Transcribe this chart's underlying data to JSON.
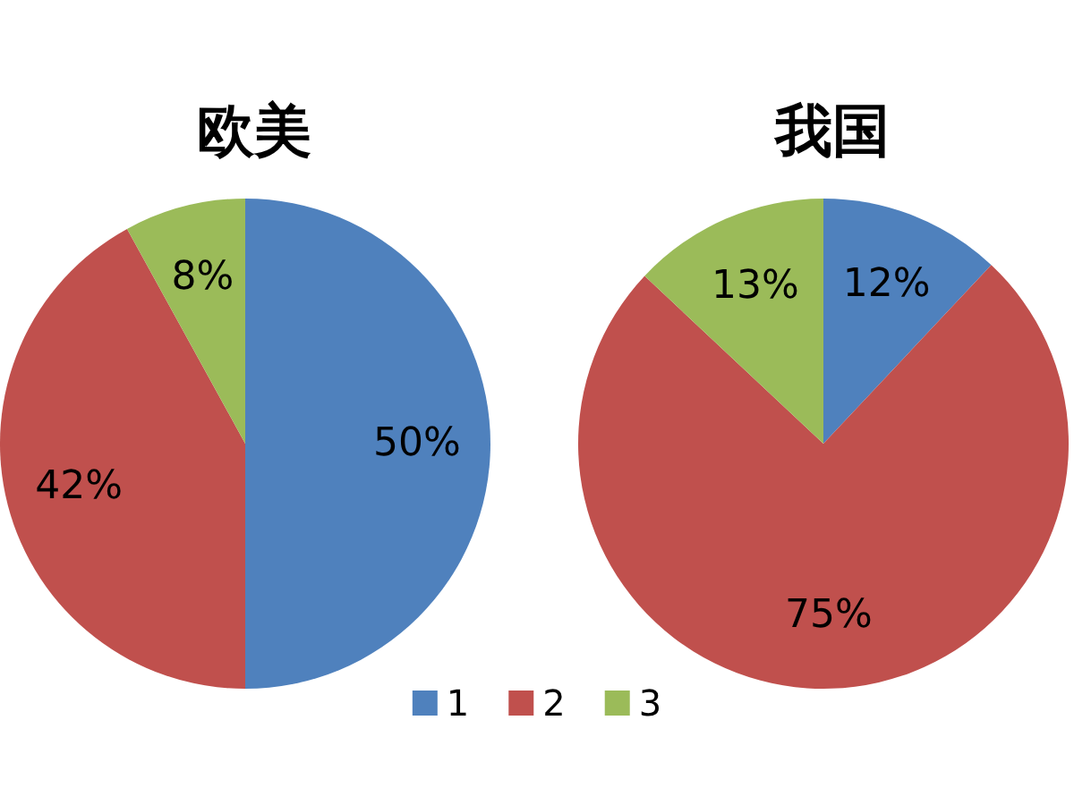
{
  "chart_data": {
    "type": "pie",
    "categories": [
      "1",
      "2",
      "3"
    ],
    "colors": [
      "#4f81bd",
      "#c0504d",
      "#9bbb59"
    ],
    "legend": "bottom",
    "series": [
      {
        "name": "欧美",
        "values": [
          50,
          42,
          8
        ],
        "value_labels": [
          "50%",
          "42%",
          "8%"
        ]
      },
      {
        "name": "我国",
        "values": [
          12,
          75,
          13
        ],
        "value_labels": [
          "12%",
          "75%",
          "13%"
        ]
      }
    ]
  }
}
